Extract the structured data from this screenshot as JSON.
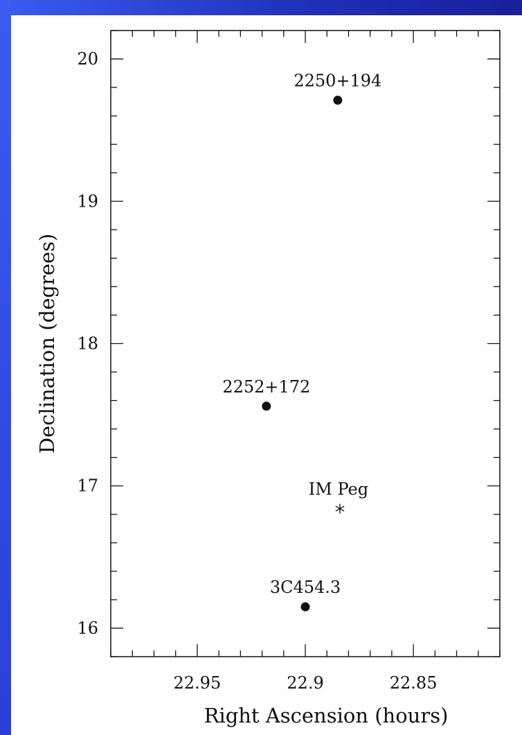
{
  "chart_data": {
    "type": "scatter",
    "title": "",
    "xlabel": "Right Ascension (hours)",
    "ylabel": "Declination (degrees)",
    "xlim": [
      22.99,
      22.81
    ],
    "ylim": [
      15.8,
      20.2
    ],
    "x_reversed": true,
    "x_ticks": [
      "22.95",
      "22.9",
      "22.85"
    ],
    "y_ticks": [
      "16",
      "17",
      "18",
      "19",
      "20"
    ],
    "grid": false,
    "points": [
      {
        "label": "2250+194",
        "ra": 22.885,
        "dec": 19.71,
        "marker": "filled-circle"
      },
      {
        "label": "2252+172",
        "ra": 22.918,
        "dec": 17.56,
        "marker": "filled-circle"
      },
      {
        "label": "IM Peg",
        "ra": 22.884,
        "dec": 16.84,
        "marker": "asterisk"
      },
      {
        "label": "3C454.3",
        "ra": 22.9,
        "dec": 16.15,
        "marker": "filled-circle"
      }
    ]
  }
}
